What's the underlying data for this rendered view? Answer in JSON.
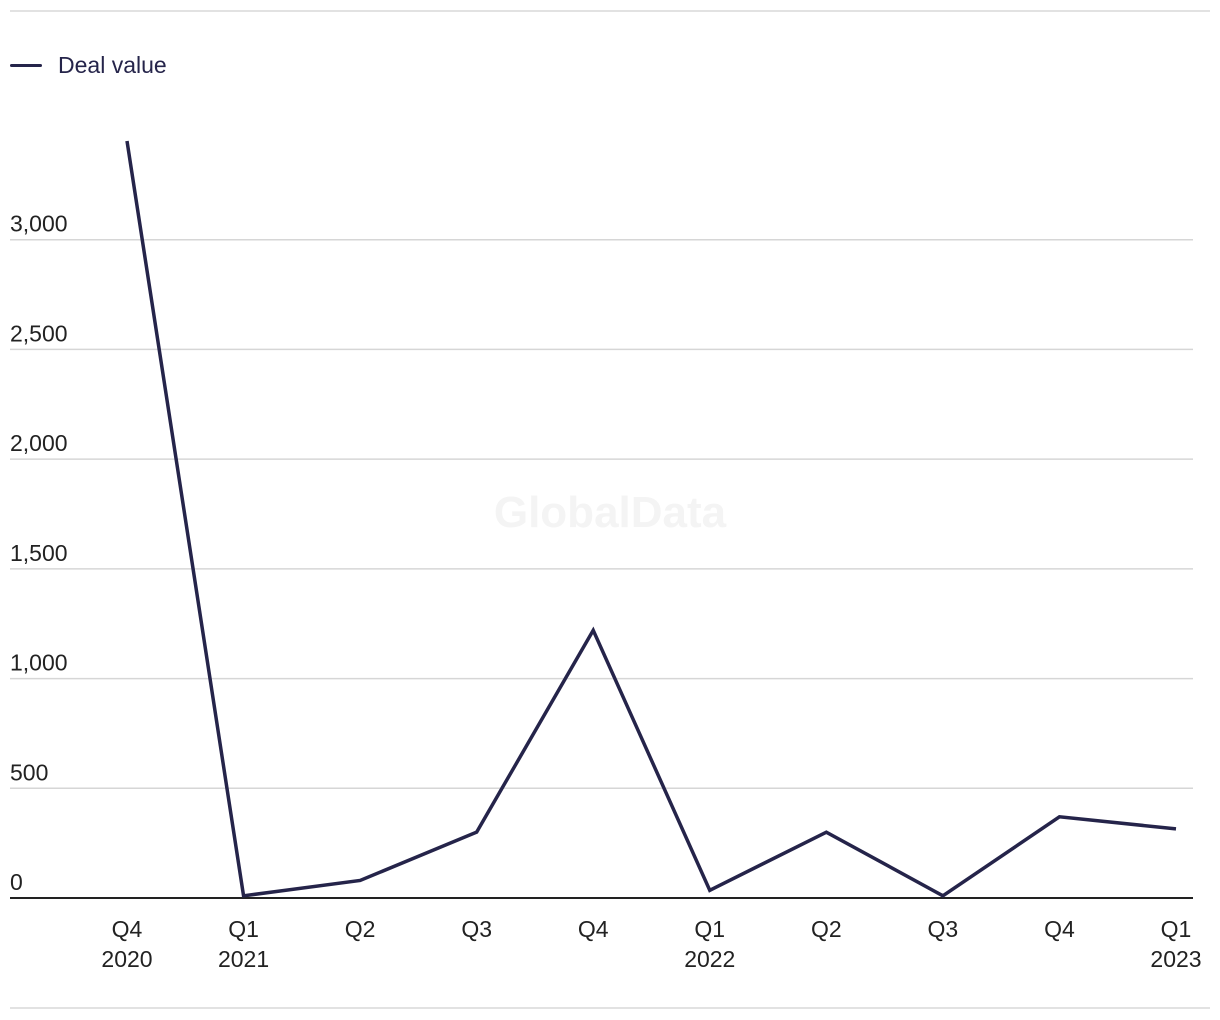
{
  "legend": {
    "label": "Deal value",
    "color": "#25244a"
  },
  "watermark": "GlobalData",
  "chart_data": {
    "type": "line",
    "title": "",
    "xlabel": "",
    "ylabel": "",
    "categories": [
      [
        "Q4",
        "2020"
      ],
      [
        "Q1",
        "2021"
      ],
      [
        "Q2",
        ""
      ],
      [
        "Q3",
        ""
      ],
      [
        "Q4",
        ""
      ],
      [
        "Q1",
        "2022"
      ],
      [
        "Q2",
        ""
      ],
      [
        "Q3",
        ""
      ],
      [
        "Q4",
        ""
      ],
      [
        "Q1",
        "2023"
      ]
    ],
    "series": [
      {
        "name": "Deal value",
        "color": "#25244a",
        "values": [
          3450,
          10,
          80,
          300,
          1220,
          35,
          300,
          10,
          370,
          315
        ]
      }
    ],
    "ylim": [
      0,
      3500
    ],
    "yticks": [
      0,
      500,
      1000,
      1500,
      2000,
      2500,
      3000
    ],
    "ytick_labels": [
      "0",
      "500",
      "1,000",
      "1,500",
      "2,000",
      "2,500",
      "3,000"
    ],
    "grid": true,
    "legend_position": "top-left"
  }
}
